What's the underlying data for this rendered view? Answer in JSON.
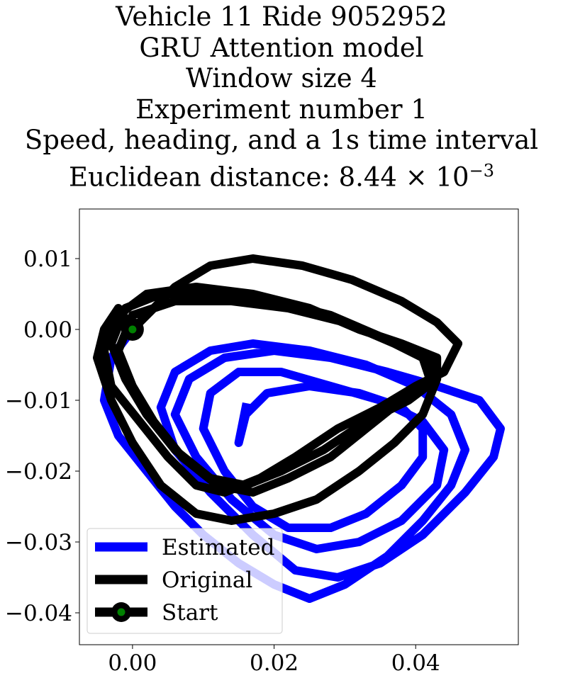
{
  "title_lines": [
    "Vehicle 11 Ride 9052952",
    "GRU Attention model",
    "Window size 4",
    "Experiment number 1",
    "Speed, heading, and a 1s time interval"
  ],
  "title_last": {
    "prefix": "Euclidean distance: 8.44 × 10",
    "exponent": "−3"
  },
  "chart_data": {
    "type": "line",
    "xlim": [
      -0.0075,
      0.0545
    ],
    "ylim": [
      -0.0445,
      0.017
    ],
    "xticks": [
      0.0,
      0.02,
      0.04
    ],
    "xtick_labels": [
      "0.00",
      "0.02",
      "0.04"
    ],
    "yticks": [
      0.01,
      0.0,
      -0.01,
      -0.02,
      -0.03,
      -0.04
    ],
    "ytick_labels": [
      "0.01",
      "0.00",
      "−0.01",
      "−0.02",
      "−0.03",
      "−0.04"
    ],
    "grid": false,
    "legend_position": "lower-left",
    "series": [
      {
        "name": "Estimated",
        "color": "#0000ff",
        "points": [
          [
            0,
            0
          ],
          [
            -0.003,
            -0.004
          ],
          [
            -0.004,
            -0.01
          ],
          [
            -0.002,
            -0.015
          ],
          [
            0.002,
            -0.02
          ],
          [
            0.006,
            -0.025
          ],
          [
            0.01,
            -0.029
          ],
          [
            0.015,
            -0.033
          ],
          [
            0.02,
            -0.036
          ],
          [
            0.025,
            -0.038
          ],
          [
            0.03,
            -0.036
          ],
          [
            0.036,
            -0.032
          ],
          [
            0.041,
            -0.027
          ],
          [
            0.045,
            -0.022
          ],
          [
            0.047,
            -0.017
          ],
          [
            0.045,
            -0.012
          ],
          [
            0.04,
            -0.008
          ],
          [
            0.033,
            -0.005
          ],
          [
            0.025,
            -0.003
          ],
          [
            0.017,
            -0.002
          ],
          [
            0.011,
            -0.003
          ],
          [
            0.006,
            -0.006
          ],
          [
            0.004,
            -0.011
          ],
          [
            0.006,
            -0.017
          ],
          [
            0.011,
            -0.023
          ],
          [
            0.017,
            -0.029
          ],
          [
            0.023,
            -0.034
          ],
          [
            0.029,
            -0.035
          ],
          [
            0.035,
            -0.033
          ],
          [
            0.041,
            -0.029
          ],
          [
            0.047,
            -0.023
          ],
          [
            0.051,
            -0.018
          ],
          [
            0.052,
            -0.014
          ],
          [
            0.049,
            -0.01
          ],
          [
            0.043,
            -0.008
          ],
          [
            0.036,
            -0.006
          ],
          [
            0.028,
            -0.004
          ],
          [
            0.02,
            -0.003
          ],
          [
            0.013,
            -0.004
          ],
          [
            0.008,
            -0.007
          ],
          [
            0.006,
            -0.012
          ],
          [
            0.009,
            -0.018
          ],
          [
            0.014,
            -0.024
          ],
          [
            0.02,
            -0.029
          ],
          [
            0.026,
            -0.031
          ],
          [
            0.032,
            -0.03
          ],
          [
            0.038,
            -0.027
          ],
          [
            0.043,
            -0.022
          ],
          [
            0.044,
            -0.017
          ],
          [
            0.041,
            -0.013
          ],
          [
            0.035,
            -0.01
          ],
          [
            0.028,
            -0.008
          ],
          [
            0.021,
            -0.006
          ],
          [
            0.015,
            -0.006
          ],
          [
            0.011,
            -0.009
          ],
          [
            0.01,
            -0.014
          ],
          [
            0.013,
            -0.02
          ],
          [
            0.017,
            -0.025
          ],
          [
            0.022,
            -0.028
          ],
          [
            0.028,
            -0.028
          ],
          [
            0.033,
            -0.026
          ],
          [
            0.038,
            -0.022
          ],
          [
            0.041,
            -0.018
          ],
          [
            0.041,
            -0.014
          ],
          [
            0.038,
            -0.011
          ],
          [
            0.032,
            -0.009
          ],
          [
            0.025,
            -0.008
          ],
          [
            0.019,
            -0.009
          ],
          [
            0.016,
            -0.012
          ],
          [
            0.015,
            -0.016
          ],
          [
            0.016,
            -0.011
          ]
        ]
      },
      {
        "name": "Original",
        "color": "#000000",
        "points": [
          [
            0,
            0
          ],
          [
            0.003,
            0.003
          ],
          [
            0.006,
            0.006
          ],
          [
            0.011,
            0.009
          ],
          [
            0.017,
            0.01
          ],
          [
            0.024,
            0.009
          ],
          [
            0.031,
            0.007
          ],
          [
            0.038,
            0.004
          ],
          [
            0.043,
            0.001
          ],
          [
            0.046,
            -0.002
          ],
          [
            0.044,
            -0.006
          ],
          [
            0.04,
            -0.008
          ],
          [
            0.035,
            -0.011
          ],
          [
            0.029,
            -0.014
          ],
          [
            0.023,
            -0.018
          ],
          [
            0.018,
            -0.021
          ],
          [
            0.013,
            -0.023
          ],
          [
            0.009,
            -0.022
          ],
          [
            0.005,
            -0.018
          ],
          [
            0.001,
            -0.013
          ],
          [
            -0.003,
            -0.008
          ],
          [
            -0.004,
            -0.003
          ],
          [
            -0.002,
            0.002
          ],
          [
            0.002,
            0.005
          ],
          [
            0.009,
            0.006
          ],
          [
            0.017,
            0.005
          ],
          [
            0.025,
            0.003
          ],
          [
            0.032,
            0.0
          ],
          [
            0.038,
            -0.002
          ],
          [
            0.043,
            -0.004
          ],
          [
            0.043,
            -0.007
          ],
          [
            0.039,
            -0.01
          ],
          [
            0.033,
            -0.013
          ],
          [
            0.027,
            -0.017
          ],
          [
            0.021,
            -0.02
          ],
          [
            0.016,
            -0.022
          ],
          [
            0.011,
            -0.021
          ],
          [
            0.006,
            -0.017
          ],
          [
            0.002,
            -0.012
          ],
          [
            -0.001,
            -0.007
          ],
          [
            -0.003,
            -0.002
          ],
          [
            -0.001,
            0.003
          ],
          [
            0.004,
            0.005
          ],
          [
            0.012,
            0.005
          ],
          [
            0.02,
            0.004
          ],
          [
            0.028,
            0.002
          ],
          [
            0.035,
            -0.001
          ],
          [
            0.041,
            -0.004
          ],
          [
            0.042,
            -0.007
          ],
          [
            0.038,
            -0.01
          ],
          [
            0.033,
            -0.014
          ],
          [
            0.028,
            -0.018
          ],
          [
            0.022,
            -0.021
          ],
          [
            0.017,
            -0.023
          ],
          [
            0.012,
            -0.022
          ],
          [
            0.007,
            -0.018
          ],
          [
            0.003,
            -0.013
          ],
          [
            0.0,
            -0.008
          ],
          [
            -0.002,
            -0.003
          ],
          [
            0.0,
            0.002
          ],
          [
            0.006,
            0.004
          ],
          [
            0.014,
            0.004
          ],
          [
            0.022,
            0.003
          ],
          [
            0.03,
            0.001
          ],
          [
            0.037,
            -0.002
          ],
          [
            0.042,
            -0.004
          ],
          [
            0.043,
            -0.007
          ],
          [
            0.041,
            -0.012
          ],
          [
            0.037,
            -0.016
          ],
          [
            0.032,
            -0.02
          ],
          [
            0.026,
            -0.024
          ],
          [
            0.02,
            -0.026
          ],
          [
            0.014,
            -0.027
          ],
          [
            0.009,
            -0.026
          ],
          [
            0.004,
            -0.022
          ],
          [
            0.0,
            -0.016
          ],
          [
            -0.003,
            -0.01
          ],
          [
            -0.005,
            -0.004
          ],
          [
            -0.004,
            0.0
          ],
          [
            -0.002,
            0.003
          ],
          [
            0.0,
            0.0
          ]
        ]
      }
    ],
    "start_point": {
      "name": "Start",
      "x": 0,
      "y": 0,
      "ring_color": "#000000",
      "fill_color": "#008000"
    }
  }
}
